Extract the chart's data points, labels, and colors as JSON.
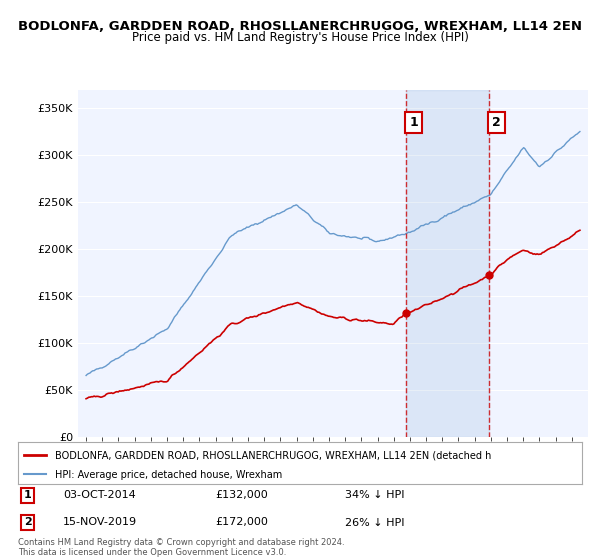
{
  "title": "BODLONFA, GARDDEN ROAD, RHOSLLANERCHRUGOG, WREXHAM, LL14 2EN",
  "subtitle": "Price paid vs. HM Land Registry's House Price Index (HPI)",
  "legend_line1": "BODLONFA, GARDDEN ROAD, RHOSLLANERCHRUGOG, WREXHAM, LL14 2EN (detached h",
  "legend_line2": "HPI: Average price, detached house, Wrexham",
  "footnote": "Contains HM Land Registry data © Crown copyright and database right 2024.\nThis data is licensed under the Open Government Licence v3.0.",
  "event1_label": "1",
  "event1_date": "03-OCT-2014",
  "event1_price": "£132,000",
  "event1_pct": "34% ↓ HPI",
  "event1_year": 2014.75,
  "event2_label": "2",
  "event2_date": "15-NOV-2019",
  "event2_price": "£172,000",
  "event2_pct": "26% ↓ HPI",
  "event2_year": 2019.88,
  "red_color": "#cc0000",
  "blue_color": "#6699cc",
  "background_plot": "#f0f4ff",
  "background_fig": "#ffffff",
  "ylim_min": 0,
  "ylim_max": 370000,
  "yticks": [
    0,
    50000,
    100000,
    150000,
    200000,
    250000,
    300000,
    350000
  ],
  "ytick_labels": [
    "£0",
    "£50K",
    "£100K",
    "£150K",
    "£200K",
    "£250K",
    "£300K",
    "£350K"
  ]
}
